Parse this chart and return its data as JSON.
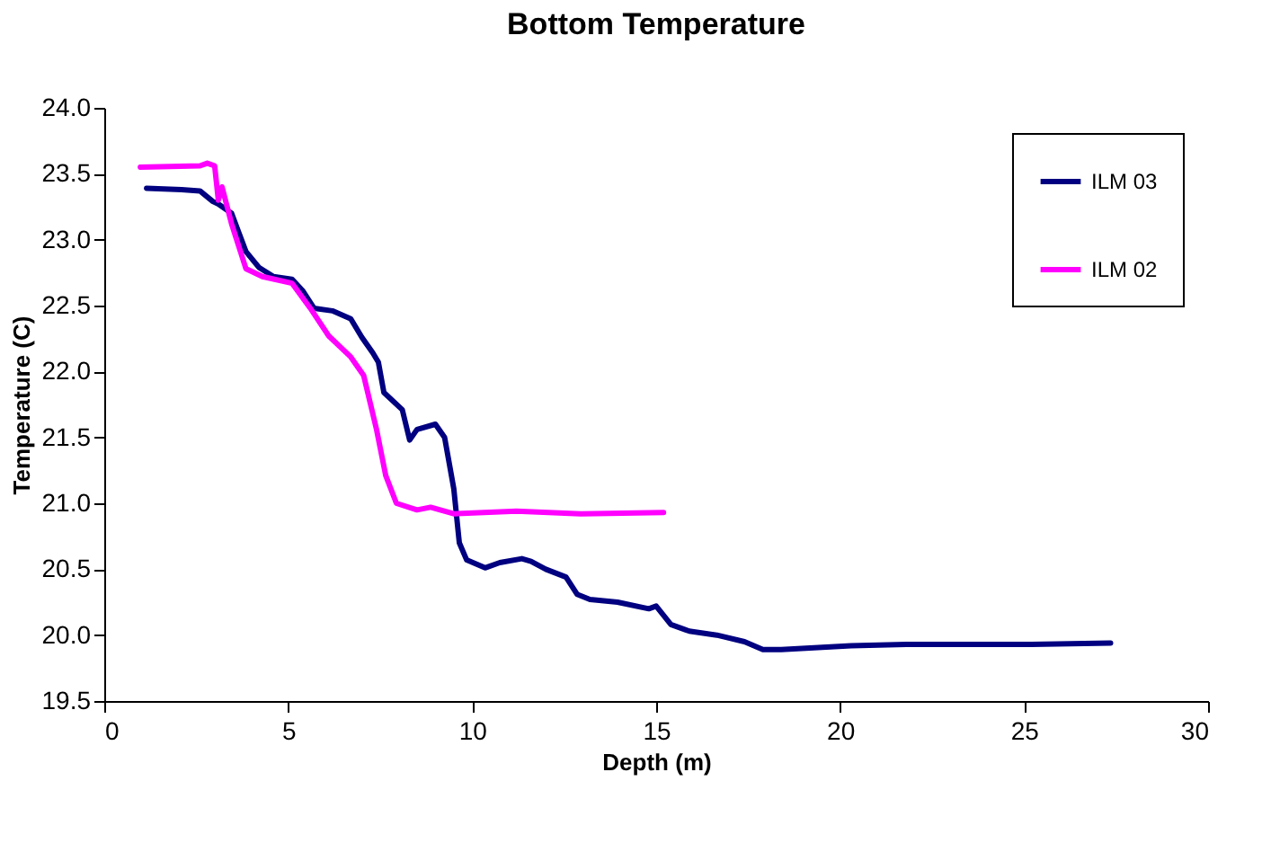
{
  "chart_data": {
    "type": "line",
    "title": "Bottom Temperature",
    "xlabel": "Depth (m)",
    "ylabel": "Temperature (C)",
    "xlim": [
      0,
      30
    ],
    "xticks": [
      0,
      5,
      10,
      15,
      20,
      25,
      30
    ],
    "ylim": [
      19.5,
      24.0
    ],
    "yticks": [
      {
        "value": 19.5,
        "label": "19.5"
      },
      {
        "value": 20.0,
        "label": "20.0"
      },
      {
        "value": 20.5,
        "label": "20.5"
      },
      {
        "value": 21.0,
        "label": "21.0"
      },
      {
        "value": 21.5,
        "label": "21.5"
      },
      {
        "value": 22.0,
        "label": "22.0"
      },
      {
        "value": 22.5,
        "label": "22.5"
      },
      {
        "value": 23.0,
        "label": "23.0"
      },
      {
        "value": 23.5,
        "label": "23.5"
      },
      {
        "value": 24.0,
        "label": "24.0"
      }
    ],
    "grid": false,
    "legend": "top right",
    "marker": "none",
    "line_style": "solid",
    "series": [
      {
        "name": "ILM 03",
        "color": "#000080",
        "x": [
          1.15,
          2.1,
          2.6,
          2.95,
          3.1,
          3.46,
          3.85,
          4.2,
          4.6,
          5.1,
          5.4,
          5.7,
          6.2,
          6.7,
          7.0,
          7.3,
          7.45,
          7.6,
          8.1,
          8.3,
          8.5,
          9.0,
          9.25,
          9.5,
          9.65,
          9.85,
          10.35,
          10.75,
          11.35,
          11.6,
          12.0,
          12.55,
          12.85,
          13.2,
          13.95,
          14.8,
          15.0,
          15.4,
          15.9,
          16.65,
          17.4,
          17.9,
          18.4,
          20.3,
          21.8,
          25.2,
          27.35
        ],
        "values": [
          23.39,
          23.38,
          23.37,
          23.29,
          23.27,
          23.2,
          22.91,
          22.79,
          22.72,
          22.7,
          22.61,
          22.48,
          22.46,
          22.4,
          22.26,
          22.14,
          22.07,
          21.84,
          21.71,
          21.48,
          21.56,
          21.6,
          21.5,
          21.11,
          20.7,
          20.57,
          20.51,
          20.55,
          20.58,
          20.56,
          20.5,
          20.44,
          20.31,
          20.27,
          20.25,
          20.2,
          20.22,
          20.08,
          20.03,
          20.0,
          19.95,
          19.89,
          19.89,
          19.92,
          19.93,
          19.93,
          19.94
        ]
      },
      {
        "name": "ILM 02",
        "color": "#ff00ff",
        "x": [
          0.98,
          2.6,
          2.8,
          3.0,
          3.1,
          3.2,
          3.46,
          3.85,
          4.3,
          5.1,
          5.6,
          6.1,
          6.7,
          7.05,
          7.4,
          7.65,
          7.94,
          8.5,
          8.87,
          9.5,
          11.2,
          12.95,
          15.2
        ],
        "values": [
          23.55,
          23.56,
          23.58,
          23.56,
          23.3,
          23.4,
          23.12,
          22.78,
          22.72,
          22.67,
          22.48,
          22.27,
          22.11,
          21.97,
          21.56,
          21.21,
          21.0,
          20.95,
          20.97,
          20.92,
          20.94,
          20.92,
          20.93
        ]
      }
    ]
  }
}
